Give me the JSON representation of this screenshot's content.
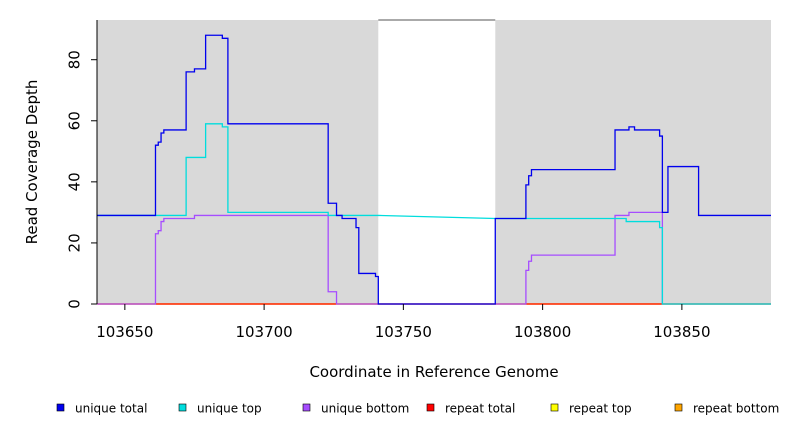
{
  "chart_data": {
    "type": "line",
    "xlabel": "Coordinate in Reference Genome",
    "ylabel": "Read Coverage Depth",
    "xlim": [
      103640,
      103882
    ],
    "ylim": [
      0,
      93
    ],
    "x_ticks": [
      103650,
      103700,
      103750,
      103800,
      103850
    ],
    "y_ticks": [
      0,
      20,
      40,
      60,
      80
    ],
    "background_color": "#d9d9d9",
    "gap": {
      "start": 103741,
      "end": 103783,
      "color": "#ffffff"
    },
    "legend_position": "bottom",
    "series": [
      {
        "name": "unique total",
        "color": "#0000ee",
        "points": [
          [
            103640,
            29
          ],
          [
            103661,
            29
          ],
          [
            103661,
            52
          ],
          [
            103662,
            52
          ],
          [
            103662,
            53
          ],
          [
            103663,
            53
          ],
          [
            103663,
            56
          ],
          [
            103664,
            56
          ],
          [
            103664,
            57
          ],
          [
            103672,
            57
          ],
          [
            103672,
            76
          ],
          [
            103675,
            76
          ],
          [
            103675,
            77
          ],
          [
            103679,
            77
          ],
          [
            103679,
            88
          ],
          [
            103685,
            88
          ],
          [
            103685,
            87
          ],
          [
            103687,
            87
          ],
          [
            103687,
            59
          ],
          [
            103723,
            59
          ],
          [
            103723,
            33
          ],
          [
            103726,
            33
          ],
          [
            103726,
            29
          ],
          [
            103728,
            29
          ],
          [
            103728,
            28
          ],
          [
            103733,
            28
          ],
          [
            103733,
            25
          ],
          [
            103734,
            25
          ],
          [
            103734,
            10
          ],
          [
            103740,
            10
          ],
          [
            103740,
            9
          ],
          [
            103741,
            9
          ],
          [
            103741,
            0
          ],
          [
            103783,
            0
          ],
          [
            103783,
            28
          ],
          [
            103794,
            28
          ],
          [
            103794,
            39
          ],
          [
            103795,
            39
          ],
          [
            103795,
            42
          ],
          [
            103796,
            42
          ],
          [
            103796,
            44
          ],
          [
            103826,
            44
          ],
          [
            103826,
            57
          ],
          [
            103831,
            57
          ],
          [
            103831,
            58
          ],
          [
            103833,
            58
          ],
          [
            103833,
            57
          ],
          [
            103842,
            57
          ],
          [
            103842,
            55
          ],
          [
            103843,
            55
          ],
          [
            103843,
            30
          ],
          [
            103845,
            30
          ],
          [
            103845,
            45
          ],
          [
            103856,
            45
          ],
          [
            103856,
            29
          ],
          [
            103882,
            29
          ]
        ]
      },
      {
        "name": "unique top",
        "color": "#00dddd",
        "points": [
          [
            103640,
            29
          ],
          [
            103661,
            29
          ],
          [
            103672,
            29
          ],
          [
            103672,
            48
          ],
          [
            103679,
            48
          ],
          [
            103679,
            59
          ],
          [
            103685,
            59
          ],
          [
            103685,
            58
          ],
          [
            103687,
            58
          ],
          [
            103687,
            30
          ],
          [
            103723,
            30
          ],
          [
            103723,
            29
          ],
          [
            103733,
            29
          ],
          [
            103741,
            29
          ],
          [
            103783,
            28
          ],
          [
            103830,
            28
          ],
          [
            103830,
            27
          ],
          [
            103842,
            27
          ],
          [
            103842,
            25
          ],
          [
            103843,
            25
          ],
          [
            103843,
            0
          ],
          [
            103882,
            0
          ]
        ]
      },
      {
        "name": "unique bottom",
        "color": "#a64dff",
        "points": [
          [
            103640,
            0
          ],
          [
            103661,
            0
          ],
          [
            103661,
            23
          ],
          [
            103662,
            23
          ],
          [
            103662,
            24
          ],
          [
            103663,
            24
          ],
          [
            103663,
            27
          ],
          [
            103664,
            27
          ],
          [
            103664,
            28
          ],
          [
            103675,
            28
          ],
          [
            103675,
            29
          ],
          [
            103723,
            29
          ],
          [
            103723,
            4
          ],
          [
            103726,
            4
          ],
          [
            103726,
            0
          ],
          [
            103741,
            0
          ],
          [
            103783,
            0
          ],
          [
            103794,
            0
          ],
          [
            103794,
            11
          ],
          [
            103795,
            11
          ],
          [
            103795,
            14
          ],
          [
            103796,
            14
          ],
          [
            103796,
            16
          ],
          [
            103826,
            16
          ],
          [
            103826,
            29
          ],
          [
            103831,
            29
          ],
          [
            103831,
            30
          ],
          [
            103843,
            30
          ],
          [
            103843,
            0
          ],
          [
            103882,
            0
          ]
        ]
      },
      {
        "name": "repeat total",
        "color": "#ff0000",
        "points": [
          [
            103640,
            0
          ],
          [
            103882,
            0
          ]
        ]
      },
      {
        "name": "repeat top",
        "color": "#ffff00",
        "points": [
          [
            103640,
            0
          ],
          [
            103882,
            0
          ]
        ]
      },
      {
        "name": "repeat bottom",
        "color": "#ffa500",
        "points": [
          [
            103640,
            0
          ],
          [
            103882,
            0
          ]
        ]
      }
    ]
  }
}
